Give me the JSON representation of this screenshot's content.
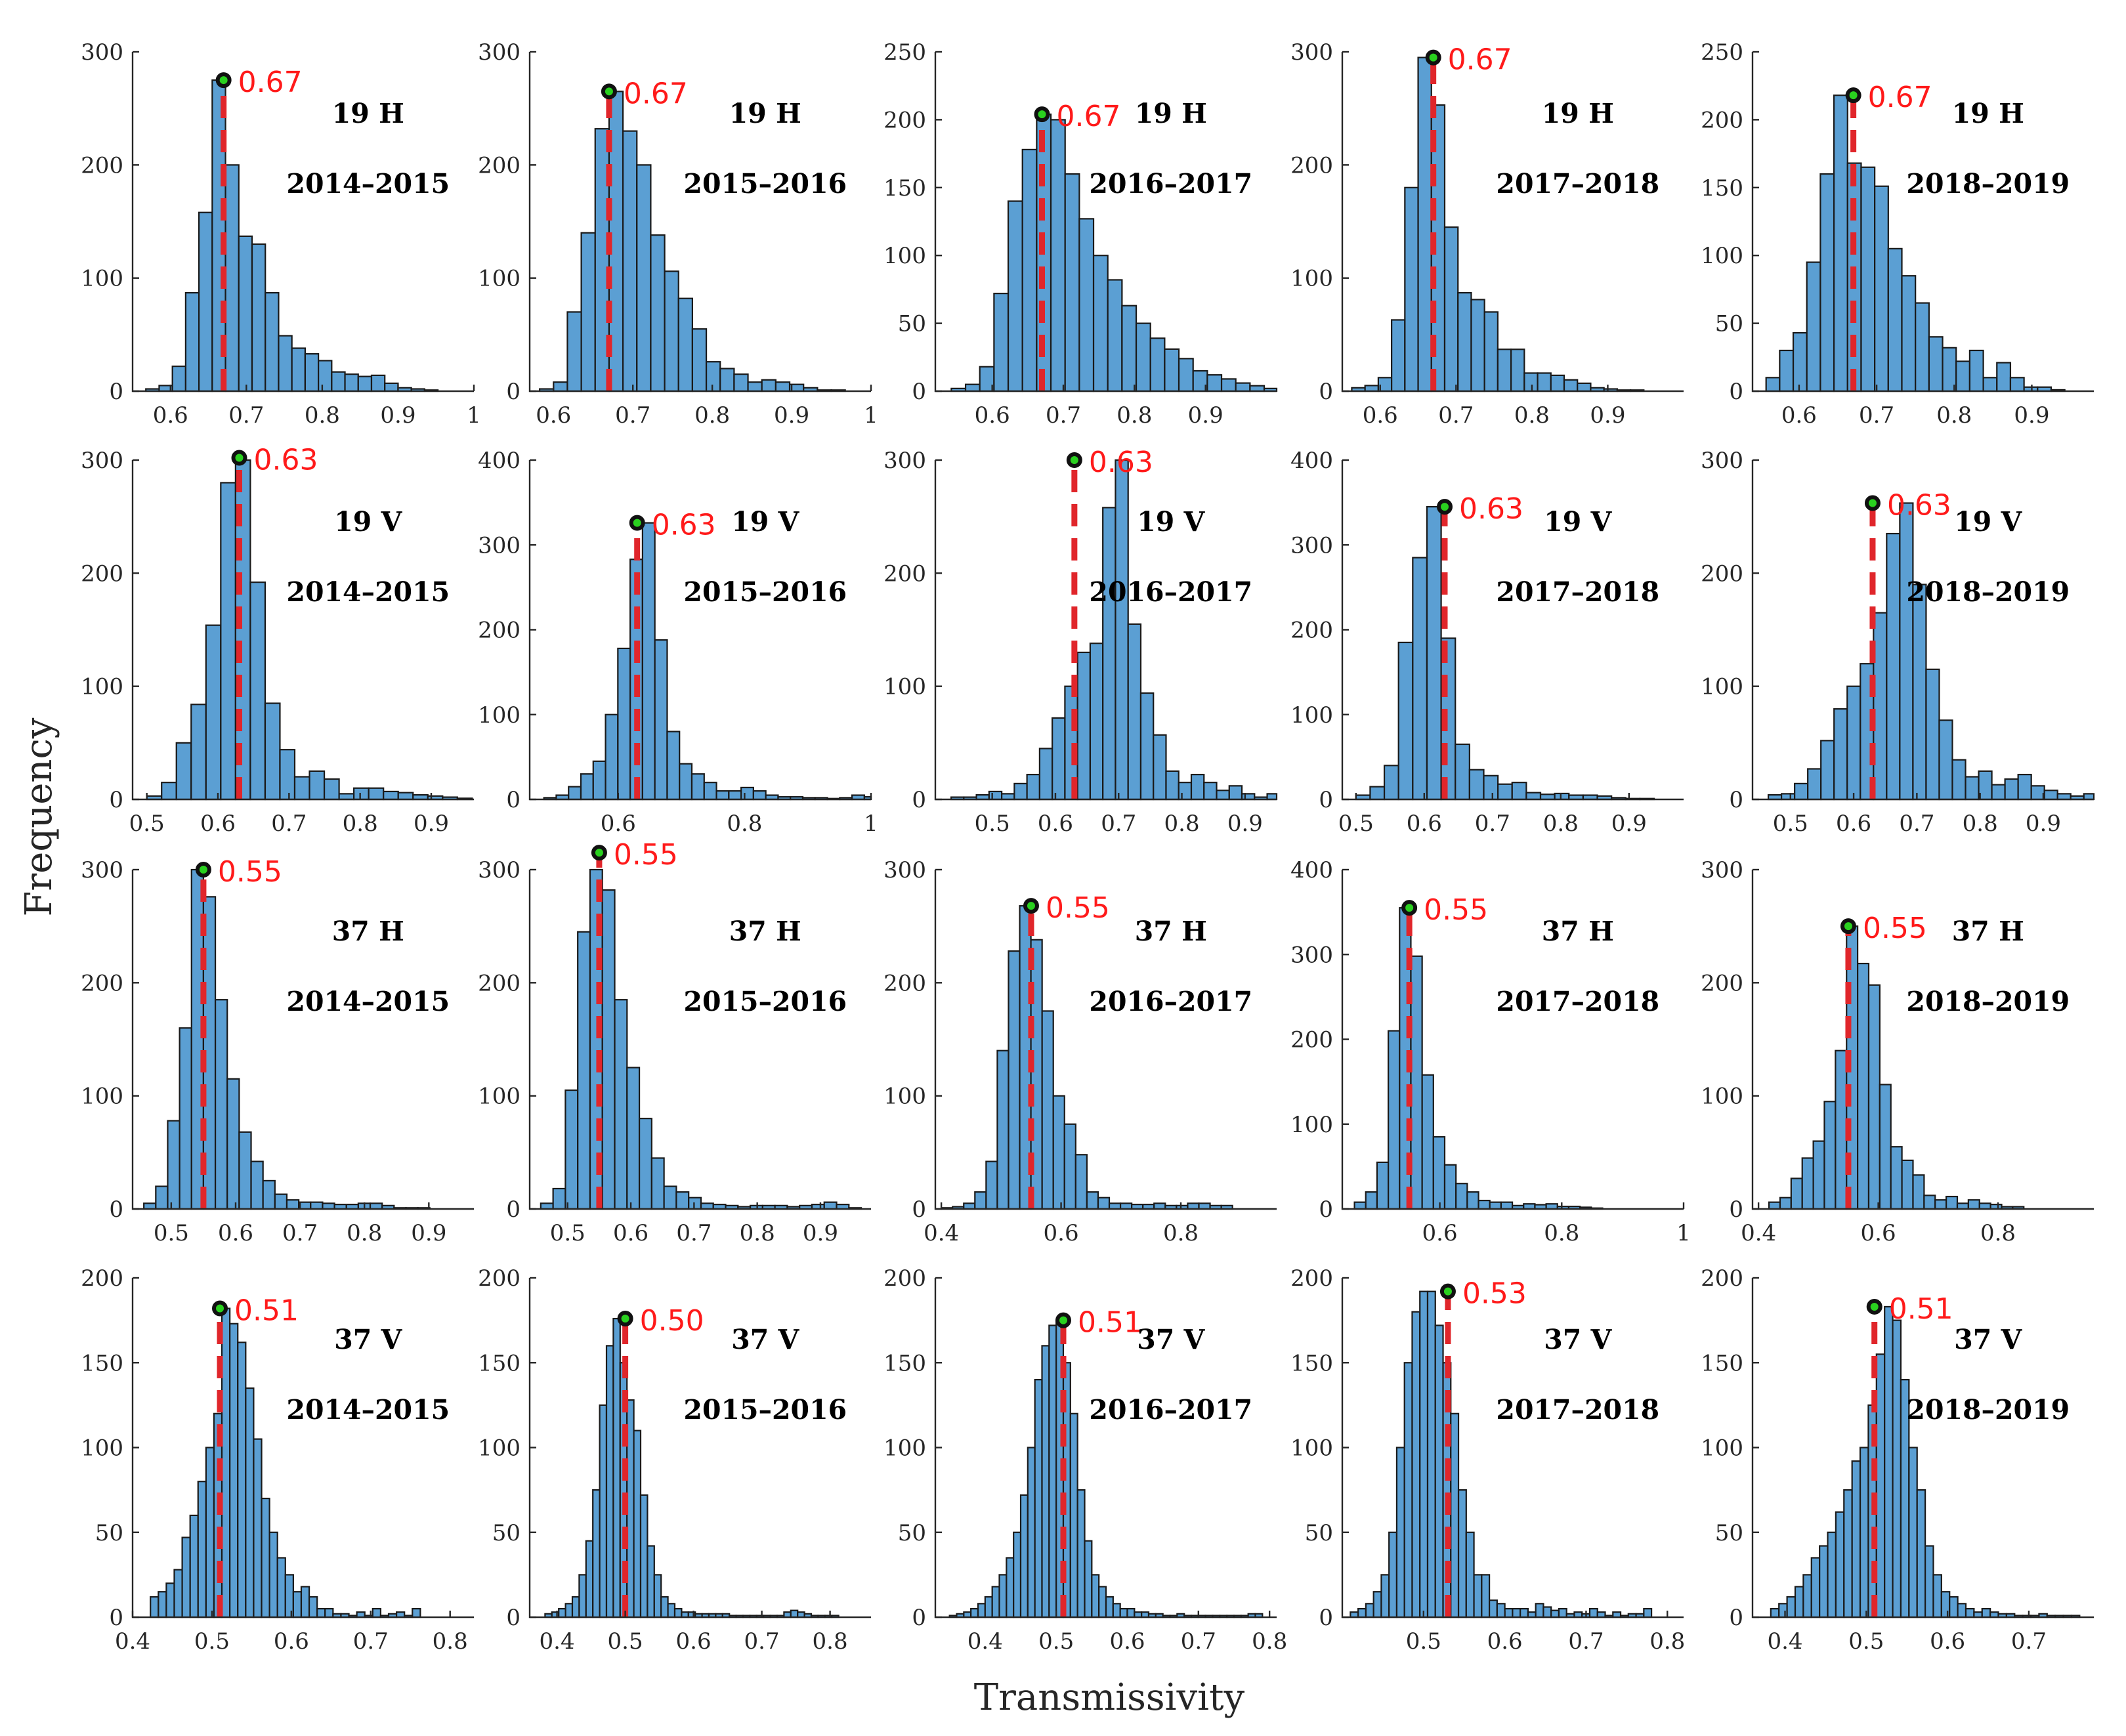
{
  "figure": {
    "xlabel": "Transmissivity",
    "ylabel": "Frequency"
  },
  "colors": {
    "bar": "#5b9fd3",
    "edge": "#1a1a1a",
    "peak_line": "#e0262b",
    "peak_label": "#ff1a1a",
    "marker": "#2ad11f"
  },
  "chart_data": [
    {
      "type": "bar",
      "band": "19 H",
      "period": "2014–2015",
      "peak": 0.67,
      "peak_label": "0.67",
      "xlim": [
        0.55,
        1.0
      ],
      "ylim": [
        0,
        300
      ],
      "xticks": [
        0.6,
        0.7,
        0.8,
        0.9,
        1.0
      ],
      "xtick_labels": [
        "0.6",
        "0.7",
        "0.8",
        "0.9",
        "1"
      ],
      "yticks": [
        0,
        100,
        200,
        300
      ],
      "bin_start": 0.5675,
      "bin_width": 0.0175,
      "values": [
        2,
        5,
        22,
        87,
        158,
        275,
        200,
        137,
        130,
        87,
        49,
        38,
        33,
        27,
        17,
        15,
        13,
        14,
        7,
        3,
        2,
        1
      ]
    },
    {
      "type": "bar",
      "band": "19 H",
      "period": "2015–2016",
      "peak": 0.67,
      "peak_label": "0.67",
      "xlim": [
        0.57,
        1.0
      ],
      "ylim": [
        0,
        300
      ],
      "xticks": [
        0.6,
        0.7,
        0.8,
        0.9,
        1.0
      ],
      "xtick_labels": [
        "0.6",
        "0.7",
        "0.8",
        "0.9",
        "1"
      ],
      "yticks": [
        0,
        100,
        200,
        300
      ],
      "bin_start": 0.5825,
      "bin_width": 0.0175,
      "values": [
        2,
        8,
        70,
        140,
        232,
        265,
        230,
        200,
        138,
        106,
        82,
        55,
        26,
        20,
        15,
        8,
        10,
        8,
        6,
        3,
        1,
        1
      ]
    },
    {
      "type": "bar",
      "band": "19 H",
      "period": "2016–2017",
      "peak": 0.67,
      "peak_label": "0.67",
      "xlim": [
        0.52,
        1.0
      ],
      "ylim": [
        0,
        250
      ],
      "xticks": [
        0.6,
        0.7,
        0.8,
        0.9
      ],
      "xtick_labels": [
        "0.6",
        "0.7",
        "0.8",
        "0.9"
      ],
      "yticks": [
        0,
        50,
        100,
        150,
        200,
        250
      ],
      "bin_start": 0.5425,
      "bin_width": 0.02,
      "values": [
        2,
        5,
        18,
        72,
        140,
        178,
        204,
        200,
        160,
        127,
        100,
        82,
        63,
        50,
        39,
        31,
        24,
        15,
        12,
        9,
        6,
        4,
        2,
        2
      ]
    },
    {
      "type": "bar",
      "band": "19 H",
      "period": "2017–2018",
      "peak": 0.67,
      "peak_label": "0.67",
      "xlim": [
        0.55,
        1.0
      ],
      "ylim": [
        0,
        300
      ],
      "xticks": [
        0.6,
        0.7,
        0.8,
        0.9
      ],
      "xtick_labels": [
        "0.6",
        "0.7",
        "0.8",
        "0.9"
      ],
      "yticks": [
        0,
        100,
        200,
        300
      ],
      "bin_start": 0.5625,
      "bin_width": 0.0175,
      "values": [
        3,
        5,
        12,
        63,
        180,
        295,
        253,
        145,
        87,
        81,
        70,
        37,
        37,
        16,
        16,
        14,
        10,
        7,
        3,
        2,
        1,
        1
      ]
    },
    {
      "type": "bar",
      "band": "19 H",
      "period": "2018–2019",
      "peak": 0.67,
      "peak_label": "0.67",
      "xlim": [
        0.54,
        0.98
      ],
      "ylim": [
        0,
        250
      ],
      "xticks": [
        0.6,
        0.7,
        0.8,
        0.9
      ],
      "xtick_labels": [
        "0.6",
        "0.7",
        "0.8",
        "0.9"
      ],
      "yticks": [
        0,
        50,
        100,
        150,
        200,
        250
      ],
      "bin_start": 0.5575,
      "bin_width": 0.0175,
      "values": [
        10,
        30,
        43,
        95,
        160,
        218,
        168,
        165,
        151,
        105,
        85,
        65,
        40,
        32,
        22,
        30,
        10,
        21,
        10,
        3,
        3,
        1
      ]
    },
    {
      "type": "bar",
      "band": "19 V",
      "period": "2014–2015",
      "peak": 0.63,
      "peak_label": "0.63",
      "xlim": [
        0.48,
        0.96
      ],
      "ylim": [
        0,
        300
      ],
      "xticks": [
        0.5,
        0.6,
        0.7,
        0.8,
        0.9
      ],
      "xtick_labels": [
        "0.5",
        "0.6",
        "0.7",
        "0.8",
        "0.9"
      ],
      "yticks": [
        0,
        100,
        200,
        300
      ],
      "bin_start": 0.5,
      "bin_width": 0.0208,
      "values": [
        3,
        15,
        50,
        84,
        154,
        280,
        302,
        192,
        85,
        44,
        20,
        25,
        18,
        5,
        10,
        10,
        7,
        6,
        4,
        3,
        2,
        1
      ]
    },
    {
      "type": "bar",
      "band": "19 V",
      "period": "2015–2016",
      "peak": 0.63,
      "peak_label": "0.63",
      "xlim": [
        0.46,
        1.0
      ],
      "ylim": [
        0,
        400
      ],
      "xticks": [
        0.6,
        0.8,
        1.0
      ],
      "xtick_labels": [
        "0.6",
        "0.8",
        "1"
      ],
      "yticks": [
        0,
        100,
        200,
        300,
        400
      ],
      "bin_start": 0.4825,
      "bin_width": 0.0195,
      "values": [
        2,
        5,
        15,
        30,
        45,
        100,
        178,
        283,
        326,
        188,
        80,
        42,
        30,
        20,
        10,
        10,
        14,
        10,
        5,
        3,
        3,
        2,
        2,
        1,
        2,
        5,
        3,
        2
      ]
    },
    {
      "type": "bar",
      "band": "19 V",
      "period": "2016–2017",
      "peak": 0.63,
      "peak_label": "0.63",
      "xlim": [
        0.41,
        0.95
      ],
      "ylim": [
        0,
        300
      ],
      "xticks": [
        0.5,
        0.6,
        0.7,
        0.8,
        0.9
      ],
      "xtick_labels": [
        "0.5",
        "0.6",
        "0.7",
        "0.8",
        "0.9"
      ],
      "yticks": [
        0,
        100,
        200,
        300
      ],
      "bin_start": 0.435,
      "bin_width": 0.02,
      "values": [
        2,
        2,
        4,
        7,
        5,
        14,
        22,
        45,
        72,
        100,
        130,
        138,
        258,
        300,
        155,
        94,
        57,
        25,
        15,
        22,
        15,
        8,
        12,
        5,
        2,
        5,
        5,
        4,
        5,
        5,
        4
      ]
    },
    {
      "type": "bar",
      "band": "19 V",
      "period": "2017–2018",
      "peak": 0.63,
      "peak_label": "0.63",
      "xlim": [
        0.48,
        0.98
      ],
      "ylim": [
        0,
        400
      ],
      "xticks": [
        0.5,
        0.6,
        0.7,
        0.8,
        0.9
      ],
      "xtick_labels": [
        "0.5",
        "0.6",
        "0.7",
        "0.8",
        "0.9"
      ],
      "yticks": [
        0,
        100,
        200,
        300,
        400
      ],
      "bin_start": 0.5,
      "bin_width": 0.0208,
      "values": [
        5,
        15,
        40,
        185,
        285,
        345,
        190,
        65,
        35,
        28,
        18,
        20,
        8,
        6,
        7,
        5,
        5,
        4,
        2,
        1,
        1
      ]
    },
    {
      "type": "bar",
      "band": "19 V",
      "period": "2018–2019",
      "peak": 0.63,
      "peak_label": "0.63",
      "xlim": [
        0.44,
        0.98
      ],
      "ylim": [
        0,
        300
      ],
      "xticks": [
        0.5,
        0.6,
        0.7,
        0.8,
        0.9
      ],
      "xtick_labels": [
        "0.5",
        "0.6",
        "0.7",
        "0.8",
        "0.9"
      ],
      "yticks": [
        0,
        100,
        200,
        300
      ],
      "bin_start": 0.465,
      "bin_width": 0.0208,
      "values": [
        4,
        5,
        14,
        27,
        52,
        80,
        100,
        120,
        165,
        235,
        262,
        190,
        115,
        70,
        35,
        20,
        25,
        13,
        18,
        22,
        12,
        8,
        5,
        3,
        5,
        3,
        3
      ]
    },
    {
      "type": "bar",
      "band": "37 H",
      "period": "2014–2015",
      "peak": 0.55,
      "peak_label": "0.55",
      "xlim": [
        0.44,
        0.97
      ],
      "ylim": [
        0,
        300
      ],
      "xticks": [
        0.5,
        0.6,
        0.7,
        0.8,
        0.9
      ],
      "xtick_labels": [
        "0.5",
        "0.6",
        "0.7",
        "0.8",
        "0.9"
      ],
      "yticks": [
        0,
        100,
        200,
        300
      ],
      "bin_start": 0.4575,
      "bin_width": 0.0185,
      "values": [
        5,
        20,
        78,
        160,
        300,
        276,
        185,
        115,
        68,
        42,
        25,
        13,
        8,
        6,
        6,
        5,
        4,
        4,
        5,
        5,
        3,
        1,
        1,
        1
      ]
    },
    {
      "type": "bar",
      "band": "37 H",
      "period": "2015–2016",
      "peak": 0.55,
      "peak_label": "0.55",
      "xlim": [
        0.44,
        0.98
      ],
      "ylim": [
        0,
        300
      ],
      "xticks": [
        0.5,
        0.6,
        0.7,
        0.8,
        0.9
      ],
      "xtick_labels": [
        "0.5",
        "0.6",
        "0.7",
        "0.8",
        "0.9"
      ],
      "yticks": [
        0,
        100,
        200,
        300
      ],
      "bin_start": 0.4575,
      "bin_width": 0.0195,
      "values": [
        5,
        18,
        105,
        245,
        315,
        282,
        185,
        125,
        80,
        45,
        20,
        15,
        10,
        5,
        4,
        3,
        2,
        3,
        3,
        3,
        2,
        3,
        4,
        6,
        4,
        1
      ]
    },
    {
      "type": "bar",
      "band": "37 H",
      "period": "2016–2017",
      "peak": 0.55,
      "peak_label": "0.55",
      "xlim": [
        0.39,
        0.96
      ],
      "ylim": [
        0,
        300
      ],
      "xticks": [
        0.4,
        0.6,
        0.8
      ],
      "xtick_labels": [
        "0.4",
        "0.6",
        "0.8"
      ],
      "yticks": [
        0,
        100,
        200,
        300
      ],
      "bin_start": 0.4,
      "bin_width": 0.0187,
      "values": [
        1,
        2,
        5,
        15,
        42,
        140,
        228,
        268,
        238,
        175,
        100,
        75,
        48,
        15,
        10,
        5,
        5,
        4,
        4,
        5,
        3,
        3,
        5,
        5,
        3,
        3
      ]
    },
    {
      "type": "bar",
      "band": "37 H",
      "period": "2017–2018",
      "peak": 0.55,
      "peak_label": "0.55",
      "xlim": [
        0.44,
        1.0
      ],
      "ylim": [
        0,
        400
      ],
      "xticks": [
        0.6,
        0.8,
        1.0
      ],
      "xtick_labels": [
        "0.6",
        "0.8",
        "1"
      ],
      "yticks": [
        0,
        100,
        200,
        300,
        400
      ],
      "bin_start": 0.46,
      "bin_width": 0.0185,
      "values": [
        8,
        20,
        55,
        210,
        355,
        298,
        158,
        85,
        52,
        30,
        20,
        10,
        8,
        8,
        4,
        6,
        5,
        6,
        3,
        3,
        2,
        1
      ]
    },
    {
      "type": "bar",
      "band": "37 H",
      "period": "2018–2019",
      "peak": 0.55,
      "peak_label": "0.55",
      "xlim": [
        0.39,
        0.96
      ],
      "ylim": [
        0,
        300
      ],
      "xticks": [
        0.4,
        0.6,
        0.8
      ],
      "xtick_labels": [
        "0.4",
        "0.6",
        "0.8"
      ],
      "yticks": [
        0,
        100,
        200,
        300
      ],
      "bin_start": 0.4175,
      "bin_width": 0.0185,
      "values": [
        6,
        10,
        27,
        45,
        60,
        95,
        140,
        250,
        217,
        198,
        110,
        55,
        43,
        30,
        12,
        8,
        11,
        5,
        8,
        5,
        4,
        2,
        2
      ]
    },
    {
      "type": "bar",
      "band": "37 V",
      "period": "2014–2015",
      "peak": 0.51,
      "peak_label": "0.51",
      "xlim": [
        0.4,
        0.83
      ],
      "ylim": [
        0,
        200
      ],
      "xticks": [
        0.4,
        0.5,
        0.6,
        0.7,
        0.8
      ],
      "xtick_labels": [
        "0.4",
        "0.5",
        "0.6",
        "0.7",
        "0.8"
      ],
      "yticks": [
        0,
        50,
        100,
        150,
        200
      ],
      "bin_start": 0.4225,
      "bin_width": 0.01,
      "values": [
        12,
        15,
        20,
        28,
        47,
        60,
        80,
        100,
        120,
        182,
        173,
        162,
        135,
        105,
        70,
        50,
        35,
        25,
        15,
        18,
        12,
        5,
        5,
        2,
        2,
        1,
        3,
        1,
        5,
        1,
        2,
        3,
        1,
        5
      ]
    },
    {
      "type": "bar",
      "band": "37 V",
      "period": "2015–2016",
      "peak": 0.5,
      "peak_label": "0.50",
      "xlim": [
        0.36,
        0.86
      ],
      "ylim": [
        0,
        200
      ],
      "xticks": [
        0.4,
        0.5,
        0.6,
        0.7,
        0.8
      ],
      "xtick_labels": [
        "0.4",
        "0.5",
        "0.6",
        "0.7",
        "0.8"
      ],
      "yticks": [
        0,
        50,
        100,
        150,
        200
      ],
      "bin_start": 0.3825,
      "bin_width": 0.01,
      "values": [
        2,
        3,
        5,
        8,
        12,
        25,
        45,
        75,
        125,
        160,
        176,
        150,
        128,
        110,
        72,
        42,
        25,
        12,
        8,
        5,
        3,
        3,
        2,
        2,
        2,
        2,
        2,
        1,
        1,
        1,
        1,
        1,
        1,
        1,
        1,
        3,
        4,
        3,
        2,
        1,
        1,
        1,
        1
      ]
    },
    {
      "type": "bar",
      "band": "37 V",
      "period": "2016–2017",
      "peak": 0.51,
      "peak_label": "0.51",
      "xlim": [
        0.33,
        0.81
      ],
      "ylim": [
        0,
        200
      ],
      "xticks": [
        0.4,
        0.5,
        0.6,
        0.7,
        0.8
      ],
      "xtick_labels": [
        "0.4",
        "0.5",
        "0.6",
        "0.7",
        "0.8"
      ],
      "yticks": [
        0,
        50,
        100,
        150,
        200
      ],
      "bin_start": 0.35,
      "bin_width": 0.01,
      "values": [
        1,
        2,
        3,
        5,
        8,
        12,
        18,
        25,
        35,
        50,
        72,
        100,
        140,
        160,
        172,
        175,
        150,
        120,
        75,
        45,
        25,
        18,
        12,
        8,
        5,
        5,
        3,
        3,
        2,
        2,
        1,
        1,
        2,
        1,
        1,
        1,
        1,
        1,
        1,
        1,
        1,
        1,
        2,
        2
      ]
    },
    {
      "type": "bar",
      "band": "37 V",
      "period": "2017–2018",
      "peak": 0.53,
      "peak_label": "0.53",
      "xlim": [
        0.4,
        0.82
      ],
      "ylim": [
        0,
        200
      ],
      "xticks": [
        0.5,
        0.6,
        0.7,
        0.8
      ],
      "xtick_labels": [
        "0.5",
        "0.6",
        "0.7",
        "0.8"
      ],
      "yticks": [
        0,
        50,
        100,
        150,
        200
      ],
      "bin_start": 0.41,
      "bin_width": 0.0095,
      "values": [
        3,
        5,
        8,
        15,
        25,
        50,
        100,
        150,
        180,
        192,
        192,
        172,
        150,
        120,
        75,
        50,
        25,
        25,
        10,
        8,
        5,
        5,
        5,
        3,
        8,
        6,
        4,
        5,
        2,
        3,
        2,
        5,
        3,
        1,
        3,
        1,
        2,
        2,
        5
      ]
    },
    {
      "type": "bar",
      "band": "37 V",
      "period": "2018–2019",
      "peak": 0.51,
      "peak_label": "0.51",
      "xlim": [
        0.36,
        0.78
      ],
      "ylim": [
        0,
        200
      ],
      "xticks": [
        0.4,
        0.5,
        0.6,
        0.7
      ],
      "xtick_labels": [
        "0.4",
        "0.5",
        "0.6",
        "0.7"
      ],
      "yticks": [
        0,
        50,
        100,
        150,
        200
      ],
      "bin_start": 0.3825,
      "bin_width": 0.01,
      "values": [
        5,
        8,
        12,
        18,
        25,
        35,
        42,
        50,
        62,
        75,
        92,
        100,
        125,
        155,
        183,
        175,
        140,
        100,
        75,
        42,
        25,
        15,
        12,
        8,
        5,
        3,
        5,
        3,
        2,
        2,
        1,
        1,
        1,
        2,
        1,
        1,
        1,
        1
      ]
    }
  ]
}
